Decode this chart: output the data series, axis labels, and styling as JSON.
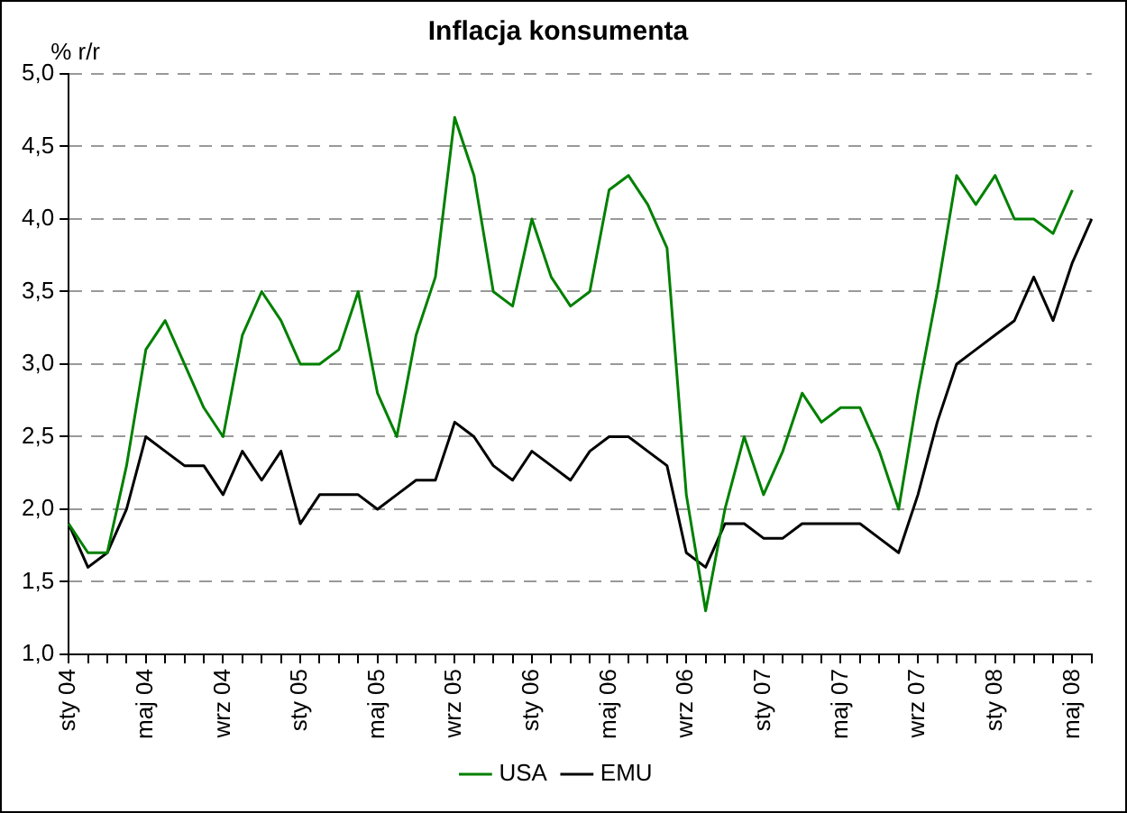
{
  "chart_data": {
    "type": "line",
    "title": "Inflacja konsumenta",
    "ylabel": "% r/r",
    "categories": [
      "sty 04",
      null,
      null,
      null,
      "maj 04",
      null,
      null,
      null,
      "wrz 04",
      null,
      null,
      null,
      "sty 05",
      null,
      null,
      null,
      "maj 05",
      null,
      null,
      null,
      "wrz 05",
      null,
      null,
      null,
      "sty 06",
      null,
      null,
      null,
      "maj 06",
      null,
      null,
      null,
      "wrz 06",
      null,
      null,
      null,
      "sty 07",
      null,
      null,
      null,
      "maj 07",
      null,
      null,
      null,
      "wrz 07",
      null,
      null,
      null,
      "sty 08",
      null,
      null,
      null,
      "maj 08",
      null
    ],
    "series": [
      {
        "name": "USA",
        "color": "#008000",
        "values": [
          1.9,
          1.7,
          1.7,
          2.3,
          3.1,
          3.3,
          3.0,
          2.7,
          2.5,
          3.2,
          3.5,
          3.3,
          3.0,
          3.0,
          3.1,
          3.5,
          2.8,
          2.5,
          3.2,
          3.6,
          4.7,
          4.3,
          3.5,
          3.4,
          4.0,
          3.6,
          3.4,
          3.5,
          4.2,
          4.3,
          4.1,
          3.8,
          2.1,
          1.3,
          2.0,
          2.5,
          2.1,
          2.4,
          2.8,
          2.6,
          2.7,
          2.7,
          2.4,
          2.0,
          2.8,
          3.5,
          4.3,
          4.1,
          4.3,
          4.0,
          4.0,
          3.9,
          4.2,
          null
        ]
      },
      {
        "name": "EMU",
        "color": "#000000",
        "values": [
          1.9,
          1.6,
          1.7,
          2.0,
          2.5,
          2.4,
          2.3,
          2.3,
          2.1,
          2.4,
          2.2,
          2.4,
          1.9,
          2.1,
          2.1,
          2.1,
          2.0,
          2.1,
          2.2,
          2.2,
          2.6,
          2.5,
          2.3,
          2.2,
          2.4,
          2.3,
          2.2,
          2.4,
          2.5,
          2.5,
          2.4,
          2.3,
          1.7,
          1.6,
          1.9,
          1.9,
          1.8,
          1.8,
          1.9,
          1.9,
          1.9,
          1.9,
          1.8,
          1.7,
          2.1,
          2.6,
          3.0,
          3.1,
          3.2,
          3.3,
          3.6,
          3.3,
          3.7,
          4.0
        ]
      }
    ],
    "ylim": [
      1,
      5
    ],
    "yticks": [
      {
        "value": 1,
        "label": "1,0"
      },
      {
        "value": 1.5,
        "label": "1,5"
      },
      {
        "value": 2,
        "label": "2,0"
      },
      {
        "value": 2.5,
        "label": "2,5"
      },
      {
        "value": 3,
        "label": "3,0"
      },
      {
        "value": 3.5,
        "label": "3,5"
      },
      {
        "value": 4,
        "label": "4,0"
      },
      {
        "value": 4.5,
        "label": "4,5"
      },
      {
        "value": 5,
        "label": "5,0"
      }
    ],
    "grid": "y",
    "legend": "bottom",
    "marker": "none",
    "line_style": "solid"
  }
}
